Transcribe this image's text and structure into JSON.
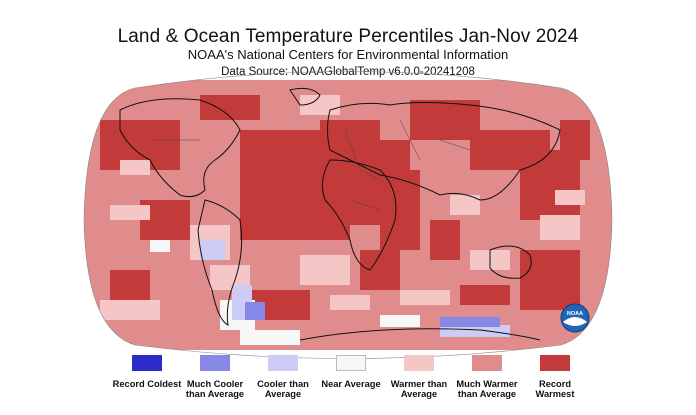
{
  "header": {
    "title": "Land & Ocean Temperature Percentiles Jan-Nov 2024",
    "subtitle": "NOAA's National Centers for Environmental Information",
    "source": "Data Source: NOAAGlobalTemp v6.0.0-20241208"
  },
  "colors": {
    "record_coldest": "#2b2bc9",
    "much_cooler": "#8787e6",
    "cooler": "#ccccf7",
    "near_average": "#f7f7f7",
    "warmer": "#f4c6c6",
    "much_warmer": "#e08c8c",
    "record_warmest": "#c33a3a",
    "coastline": "#111111",
    "border": "#444444"
  },
  "logo": {
    "text": "NOAA",
    "icon": "noaa-logo-icon"
  },
  "legend": {
    "items": [
      {
        "label": "Record Coldest",
        "color": "#2b2bc9"
      },
      {
        "label": "Much Cooler than Average",
        "color": "#8787e6"
      },
      {
        "label": "Cooler than Average",
        "color": "#ccccf7"
      },
      {
        "label": "Near Average",
        "color": "#f7f7f7"
      },
      {
        "label": "Warmer than Average",
        "color": "#f4c6c6"
      },
      {
        "label": "Much Warmer than Average",
        "color": "#e08c8c"
      },
      {
        "label": "Record Warmest",
        "color": "#c33a3a"
      }
    ]
  }
}
